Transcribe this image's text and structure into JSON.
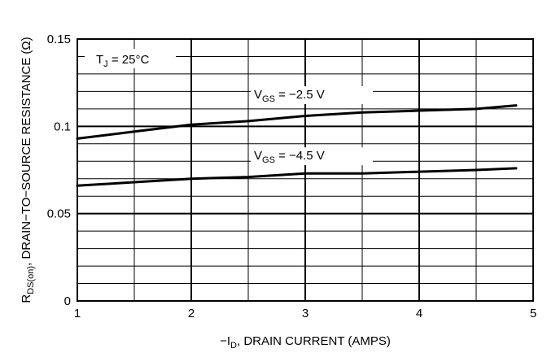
{
  "chart_data": {
    "type": "line",
    "xlabel": "−I",
    "xlabel_sub": "D",
    "xlabel_suffix": ", DRAIN CURRENT (AMPS)",
    "ylabel": "R",
    "ylabel_sub": "DS(on)",
    "ylabel_suffix": ", DRAIN−TO−SOURCE RESISTANCE (Ω)",
    "xlim": [
      1,
      5
    ],
    "ylim": [
      0,
      0.15
    ],
    "x_ticks": [
      1,
      2,
      3,
      4,
      5
    ],
    "x_tick_labels": [
      "1",
      "2",
      "3",
      "4",
      "5"
    ],
    "y_ticks": [
      0,
      0.05,
      0.1,
      0.15
    ],
    "y_tick_labels": [
      "0",
      "0.05",
      "0.1",
      "0.15"
    ],
    "x_minor_step": 0.5,
    "y_minor_step": 0.01,
    "grid": true,
    "legend": "none",
    "annotation": {
      "main": "T",
      "sub": "J",
      "rest": " = 25°C"
    },
    "series": [
      {
        "label_main": "V",
        "label_sub": "GS",
        "label_rest": " = −2.5 V",
        "label_at": [
          2.55,
          0.116
        ],
        "color": "#000000",
        "x": [
          1.0,
          1.5,
          2.0,
          2.5,
          3.0,
          3.5,
          4.0,
          4.5,
          4.85
        ],
        "values": [
          0.093,
          0.097,
          0.101,
          0.103,
          0.106,
          0.108,
          0.109,
          0.11,
          0.112
        ]
      },
      {
        "label_main": "V",
        "label_sub": "GS",
        "label_rest": " = −4.5 V",
        "label_at": [
          2.55,
          0.081
        ],
        "color": "#000000",
        "x": [
          1.0,
          1.5,
          2.0,
          2.5,
          3.0,
          3.5,
          4.0,
          4.5,
          4.85
        ],
        "values": [
          0.066,
          0.068,
          0.07,
          0.071,
          0.073,
          0.073,
          0.074,
          0.075,
          0.076
        ]
      }
    ]
  }
}
